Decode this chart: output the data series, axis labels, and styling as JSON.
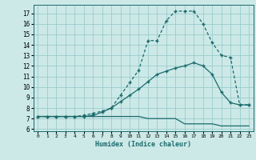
{
  "xlabel": "Humidex (Indice chaleur)",
  "x_ticks": [
    0,
    1,
    2,
    3,
    4,
    5,
    6,
    7,
    8,
    9,
    10,
    11,
    12,
    13,
    14,
    15,
    16,
    17,
    18,
    19,
    20,
    21,
    22,
    23
  ],
  "y_ticks": [
    6,
    7,
    8,
    9,
    10,
    11,
    12,
    13,
    14,
    15,
    16,
    17
  ],
  "xlim": [
    -0.5,
    23.5
  ],
  "ylim": [
    5.8,
    17.8
  ],
  "bg_color": "#cce9e8",
  "grid_color": "#99cccc",
  "line_color": "#1a6b6b",
  "line_upper_x": [
    0,
    1,
    2,
    3,
    4,
    5,
    6,
    7,
    8,
    9,
    10,
    11,
    12,
    13,
    14,
    15,
    16,
    17,
    18,
    19,
    20,
    21,
    22,
    23
  ],
  "line_upper_y": [
    7.2,
    7.2,
    7.2,
    7.2,
    7.2,
    7.3,
    7.5,
    7.7,
    8.0,
    9.2,
    10.4,
    11.6,
    14.4,
    14.4,
    16.3,
    17.2,
    17.2,
    17.2,
    16.0,
    14.2,
    13.0,
    12.8,
    8.3,
    8.3
  ],
  "line_mid_x": [
    0,
    1,
    2,
    3,
    4,
    5,
    6,
    7,
    8,
    9,
    10,
    11,
    12,
    13,
    14,
    15,
    16,
    17,
    18,
    19,
    20,
    21,
    22,
    23
  ],
  "line_mid_y": [
    7.2,
    7.2,
    7.2,
    7.2,
    7.2,
    7.2,
    7.3,
    7.6,
    8.0,
    8.6,
    9.2,
    9.8,
    10.5,
    11.2,
    11.5,
    11.8,
    12.0,
    12.3,
    12.0,
    11.2,
    9.5,
    8.5,
    8.3,
    8.3
  ],
  "line_lower_x": [
    0,
    1,
    2,
    3,
    4,
    5,
    6,
    7,
    8,
    9,
    10,
    11,
    12,
    13,
    14,
    15,
    16,
    17,
    18,
    19,
    20,
    21,
    22,
    23
  ],
  "line_lower_y": [
    7.2,
    7.2,
    7.2,
    7.2,
    7.2,
    7.2,
    7.2,
    7.2,
    7.2,
    7.2,
    7.2,
    7.2,
    7.0,
    7.0,
    7.0,
    7.0,
    6.5,
    6.5,
    6.5,
    6.5,
    6.3,
    6.3,
    6.3,
    6.3
  ]
}
